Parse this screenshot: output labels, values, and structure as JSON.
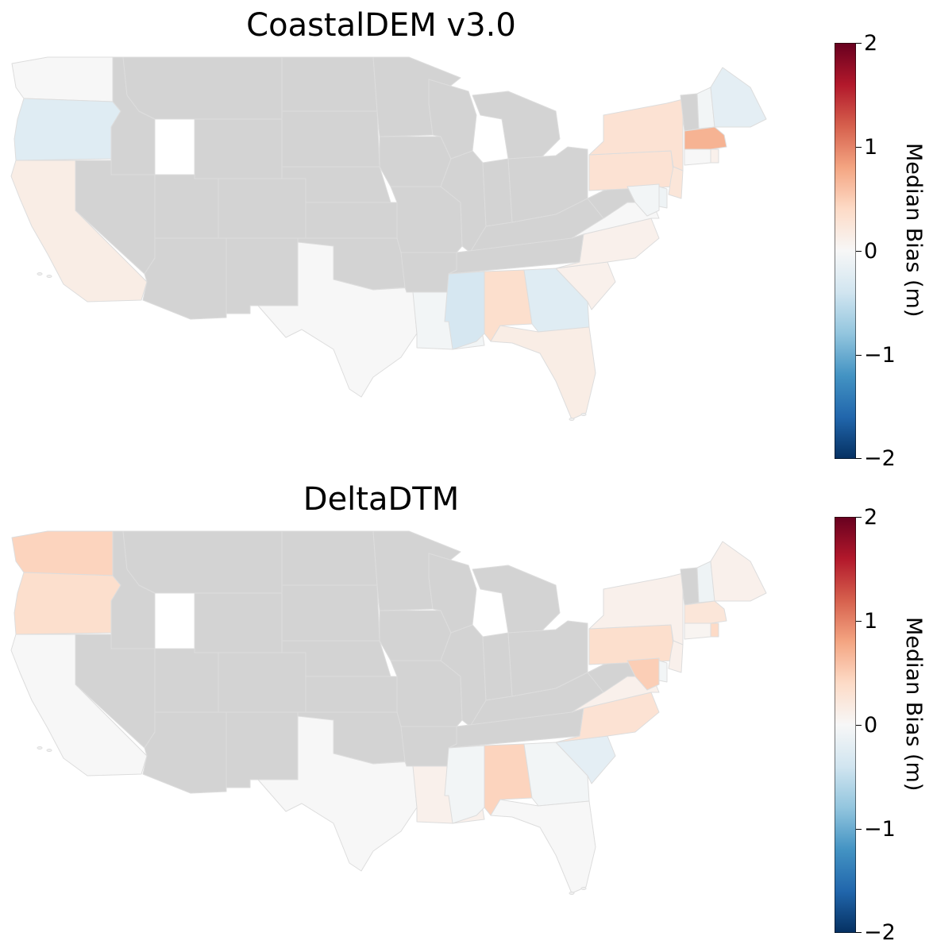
{
  "colors": {
    "no_data": "#d3d3d3",
    "state_border": "#dddddd",
    "colormap": "RdBu_r",
    "colormap_stops": [
      "#053061",
      "#2166ac",
      "#4393c3",
      "#92c5de",
      "#d1e5f0",
      "#f7f7f7",
      "#fddbc7",
      "#f4a582",
      "#d6604d",
      "#b2182b",
      "#67001f"
    ]
  },
  "colorbar": {
    "label": "Median Bias (m)",
    "min": -2,
    "max": 2,
    "ticks": [
      "2",
      "1",
      "0",
      "−1",
      "−2"
    ]
  },
  "panels": [
    {
      "title": "CoastalDEM v3.0",
      "state_bias": {
        "WA": 0.0,
        "OR": -0.25,
        "CA": 0.15,
        "TX": 0.0,
        "LA": -0.05,
        "MS": -0.35,
        "AL": 0.35,
        "GA": -0.25,
        "FL": 0.15,
        "SC": 0.1,
        "NC": 0.1,
        "VA": 0.0,
        "MD": -0.05,
        "DE": -0.1,
        "NJ": 0.25,
        "PA": 0.3,
        "NY": 0.3,
        "CT": 0.0,
        "RI": 0.1,
        "MA": 0.7,
        "NH": -0.05,
        "ME": -0.2
      }
    },
    {
      "title": "DeltaDTM",
      "state_bias": {
        "WA": 0.45,
        "OR": 0.35,
        "CA": 0.0,
        "TX": 0.0,
        "LA": 0.1,
        "MS": -0.05,
        "AL": 0.45,
        "GA": -0.05,
        "FL": 0.0,
        "SC": -0.2,
        "NC": 0.3,
        "VA": 0.1,
        "MD": 0.5,
        "DE": -0.05,
        "NJ": 0.1,
        "PA": 0.35,
        "NY": 0.1,
        "CT": 0.05,
        "RI": 0.4,
        "MA": 0.25,
        "NH": -0.1,
        "ME": 0.1
      }
    }
  ]
}
